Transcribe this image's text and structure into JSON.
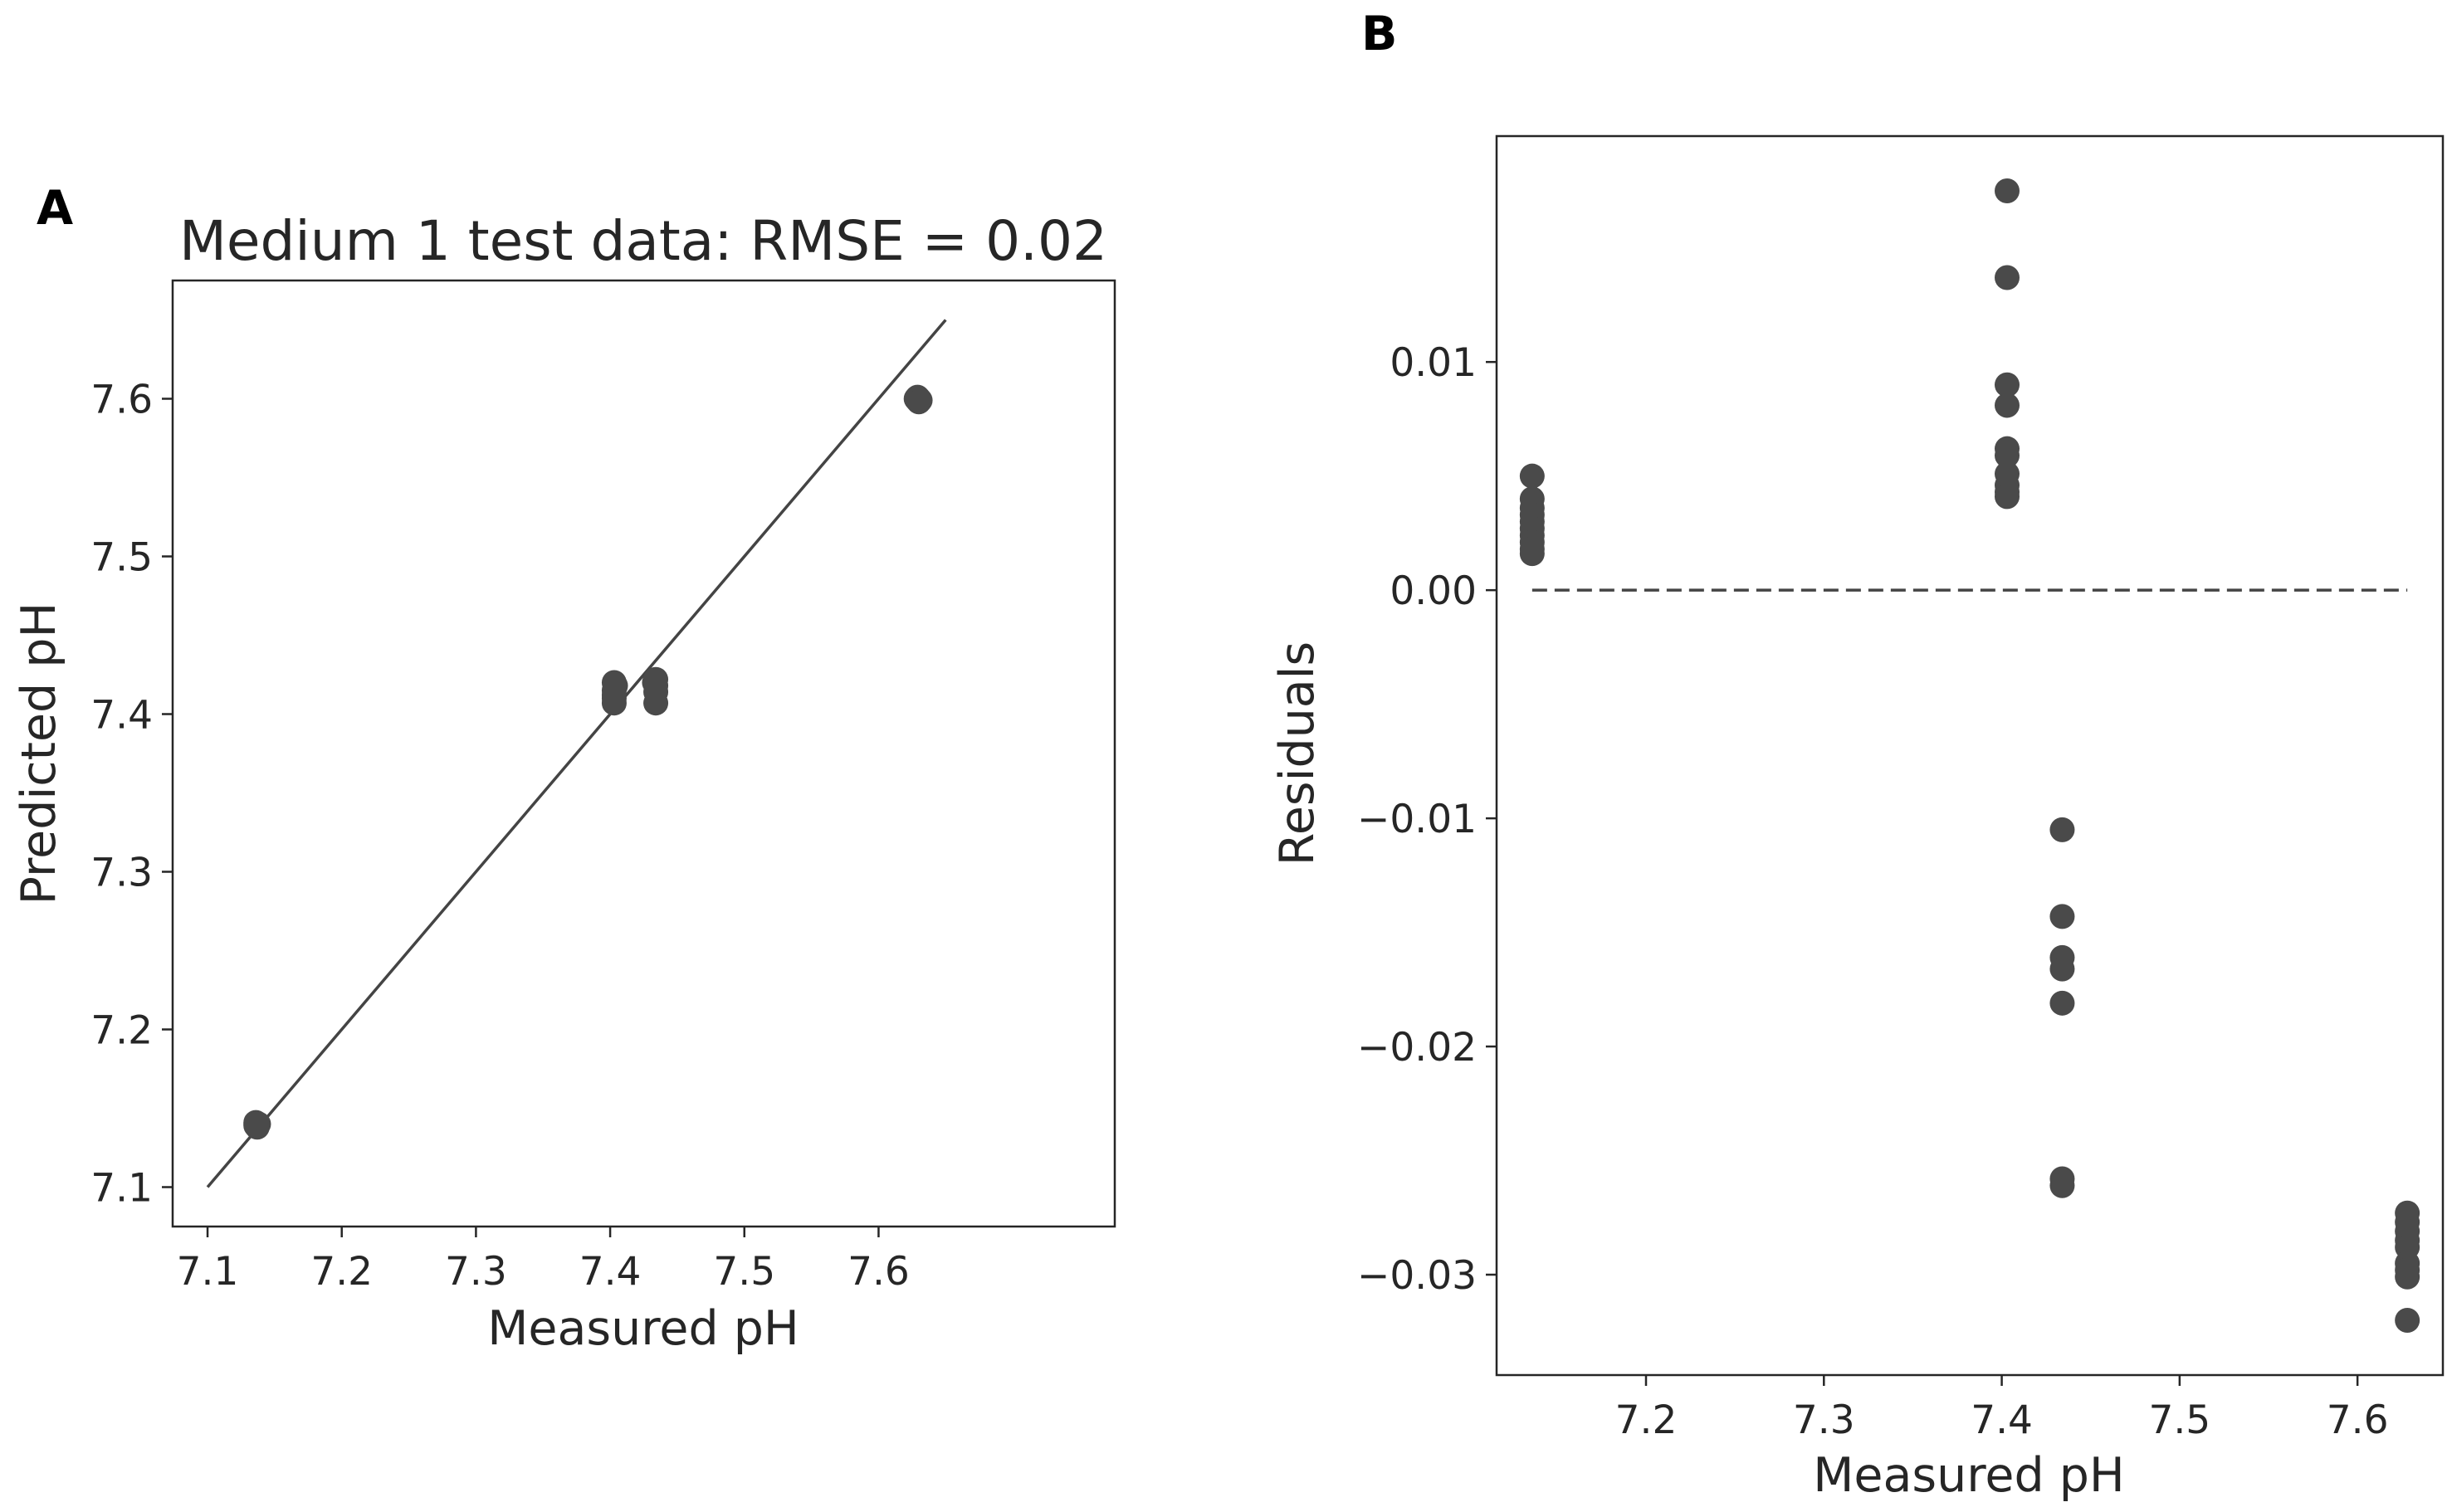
{
  "colors": {
    "marker": "#4a4a4a",
    "axis": "#262626",
    "line": "#444444"
  },
  "chart_data": [
    {
      "panel": "A",
      "type": "scatter",
      "title": "Medium 1 test data: RMSE = 0.02",
      "xlabel": "Measured pH",
      "ylabel": "Predicted pH",
      "xlim": [
        7.074,
        7.776
      ],
      "ylim": [
        7.075,
        7.675
      ],
      "xticks": [
        7.1,
        7.2,
        7.3,
        7.4,
        7.5,
        7.6
      ],
      "xtick_labels": [
        "7.1",
        "7.2",
        "7.3",
        "7.4",
        "7.5",
        "7.6"
      ],
      "yticks": [
        7.1,
        7.2,
        7.3,
        7.4,
        7.5,
        7.6
      ],
      "ytick_labels": [
        "7.1",
        "7.2",
        "7.3",
        "7.4",
        "7.5",
        "7.6"
      ],
      "reference_line": {
        "style": "solid",
        "from": [
          7.1,
          7.1
        ],
        "to": [
          7.65,
          7.65
        ]
      },
      "points": [
        [
          7.136,
          7.139
        ],
        [
          7.136,
          7.14
        ],
        [
          7.137,
          7.138
        ],
        [
          7.136,
          7.141
        ],
        [
          7.137,
          7.139
        ],
        [
          7.138,
          7.14
        ],
        [
          7.403,
          7.42
        ],
        [
          7.403,
          7.415
        ],
        [
          7.403,
          7.412
        ],
        [
          7.403,
          7.41
        ],
        [
          7.403,
          7.407
        ],
        [
          7.404,
          7.418
        ],
        [
          7.434,
          7.422
        ],
        [
          7.434,
          7.418
        ],
        [
          7.434,
          7.414
        ],
        [
          7.434,
          7.407
        ],
        [
          7.433,
          7.42
        ],
        [
          7.628,
          7.6
        ],
        [
          7.629,
          7.599
        ],
        [
          7.63,
          7.6
        ],
        [
          7.631,
          7.599
        ],
        [
          7.629,
          7.601
        ],
        [
          7.63,
          7.598
        ]
      ]
    },
    {
      "panel": "B",
      "type": "scatter",
      "title": "",
      "xlabel": "Measured pH",
      "ylabel": "Residuals",
      "xlim": [
        7.116,
        7.648
      ],
      "ylim": [
        -0.0344,
        0.0199
      ],
      "xticks": [
        7.2,
        7.3,
        7.4,
        7.5,
        7.6
      ],
      "xtick_labels": [
        "7.2",
        "7.3",
        "7.4",
        "7.5",
        "7.6"
      ],
      "yticks": [
        0.01,
        0.0,
        -0.01,
        -0.02,
        -0.03
      ],
      "ytick_labels": [
        "0.01",
        "0.00",
        "−0.01",
        "−0.02",
        "−0.03"
      ],
      "reference_line": {
        "style": "dashed",
        "from": [
          7.136,
          0.0
        ],
        "to": [
          7.628,
          0.0
        ]
      },
      "points": [
        [
          7.136,
          0.005
        ],
        [
          7.136,
          0.004
        ],
        [
          7.136,
          0.0036
        ],
        [
          7.136,
          0.0033
        ],
        [
          7.136,
          0.003
        ],
        [
          7.136,
          0.0027
        ],
        [
          7.136,
          0.0024
        ],
        [
          7.136,
          0.0021
        ],
        [
          7.136,
          0.0018
        ],
        [
          7.136,
          0.0016
        ],
        [
          7.403,
          0.0175
        ],
        [
          7.403,
          0.0137
        ],
        [
          7.403,
          0.009
        ],
        [
          7.403,
          0.0081
        ],
        [
          7.403,
          0.0062
        ],
        [
          7.403,
          0.0059
        ],
        [
          7.403,
          0.0051
        ],
        [
          7.403,
          0.0046
        ],
        [
          7.403,
          0.0043
        ],
        [
          7.403,
          0.0041
        ],
        [
          7.434,
          -0.0105
        ],
        [
          7.434,
          -0.0143
        ],
        [
          7.434,
          -0.0161
        ],
        [
          7.434,
          -0.0166
        ],
        [
          7.434,
          -0.0181
        ],
        [
          7.434,
          -0.0258
        ],
        [
          7.434,
          -0.0261
        ],
        [
          7.628,
          -0.0273
        ],
        [
          7.628,
          -0.0277
        ],
        [
          7.628,
          -0.0281
        ],
        [
          7.628,
          -0.0285
        ],
        [
          7.628,
          -0.0288
        ],
        [
          7.628,
          -0.0295
        ],
        [
          7.628,
          -0.0298
        ],
        [
          7.628,
          -0.0301
        ],
        [
          7.628,
          -0.032
        ]
      ]
    }
  ]
}
